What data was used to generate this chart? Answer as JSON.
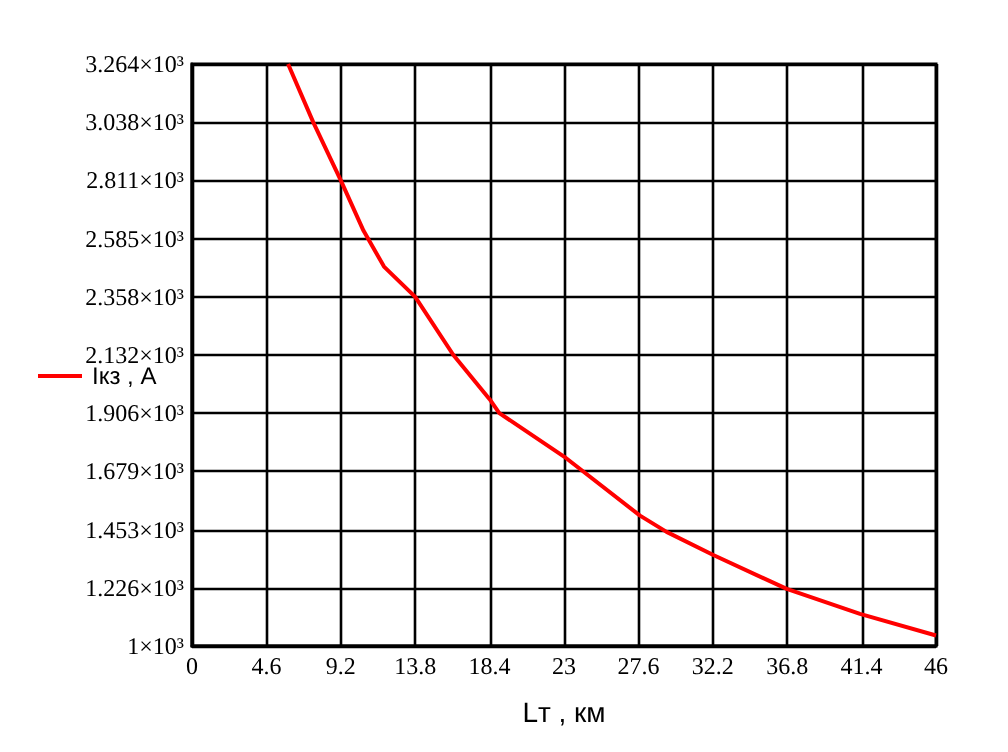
{
  "chart_data": {
    "type": "line",
    "xlabel": "Lт , км",
    "legend": "left",
    "x": [
      5.94,
      7.5,
      9.2,
      10.6,
      11.87,
      13.8,
      16.16,
      18.4,
      19.0,
      23,
      27.7,
      29.34,
      32.23,
      36.77,
      41.3,
      46
    ],
    "series": [
      {
        "name": "Iкз , A",
        "color": "#ff0000",
        "values": [
          3264,
          3037,
          2811,
          2616,
          2476,
          2358,
          2132,
          1960,
          1906,
          1737,
          1507,
          1444,
          1354,
          1222,
          1125,
          1041
        ]
      }
    ],
    "xlim": [
      0,
      46
    ],
    "xticks": [
      0,
      4.6,
      9.2,
      13.8,
      18.4,
      23,
      27.6,
      32.2,
      36.8,
      41.4,
      46
    ],
    "ylim": [
      1000,
      3264
    ],
    "yticks": [
      {
        "value": 1000,
        "label": "1×10³"
      },
      {
        "value": 1226,
        "label": "1.226×10³"
      },
      {
        "value": 1453,
        "label": "1.453×10³"
      },
      {
        "value": 1679,
        "label": "1.679×10³"
      },
      {
        "value": 1906,
        "label": "1.906×10³"
      },
      {
        "value": 2132,
        "label": "2.132×10³"
      },
      {
        "value": 2358,
        "label": "2.358×10³"
      },
      {
        "value": 2585,
        "label": "2.585×10³"
      },
      {
        "value": 2811,
        "label": "2.811×10³"
      },
      {
        "value": 3038,
        "label": "3.038×10³"
      },
      {
        "value": 3264,
        "label": "3.264×10³"
      }
    ],
    "grid": true,
    "marker": "none",
    "line_style": "solid"
  }
}
